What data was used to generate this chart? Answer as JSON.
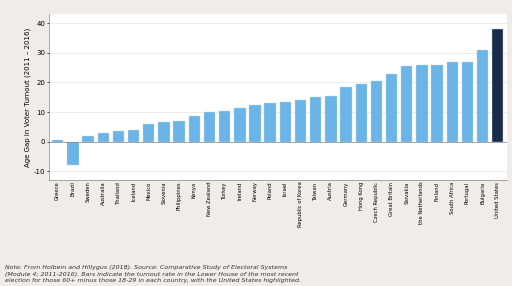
{
  "categories": [
    "Greece",
    "Brazil",
    "Sweden",
    "Australia",
    "Thailand",
    "Iceland",
    "Mexico",
    "Slovenia",
    "Philippines",
    "Kenya",
    "New Zealand",
    "Turkey",
    "Ireland",
    "Norway",
    "Poland",
    "Israel",
    "Republic of Korea",
    "Taiwan",
    "Austria",
    "Germany",
    "Hong Kong",
    "Czech Republic",
    "Great Britain",
    "Slovakia",
    "the Netherlands",
    "Finland",
    "South Africa",
    "Portugal",
    "Bulgaria",
    "United States"
  ],
  "values": [
    0.5,
    -8.0,
    2.0,
    3.0,
    3.5,
    4.0,
    6.0,
    6.5,
    7.0,
    8.5,
    10.0,
    10.5,
    11.5,
    12.5,
    13.0,
    13.5,
    14.0,
    15.0,
    15.5,
    18.5,
    19.5,
    20.5,
    23.0,
    25.5,
    26.0,
    26.0,
    27.0,
    27.0,
    31.0,
    38.0
  ],
  "bar_color_default": "#6ab4e8",
  "bar_color_highlight": "#1a2b4a",
  "highlight_index": 29,
  "ylabel": "Age Gap in Voter Turnout (2011 – 2016)",
  "ylim": [
    -13,
    43
  ],
  "yticks": [
    -10,
    0,
    10,
    20,
    30,
    40
  ],
  "note_text": "Note: From Holbein and Hillygus (2018). Source: Comparative Study of Electoral Systems\n(Module 4; 2011-2016). Bars indicate the turnout rate in the Lower House of the most recent\nelection for those 60+ minus those 18-29 in each country, with the United States highlighted.",
  "bg_color": "#f0ede8",
  "plot_bg_color": "#ffffff"
}
